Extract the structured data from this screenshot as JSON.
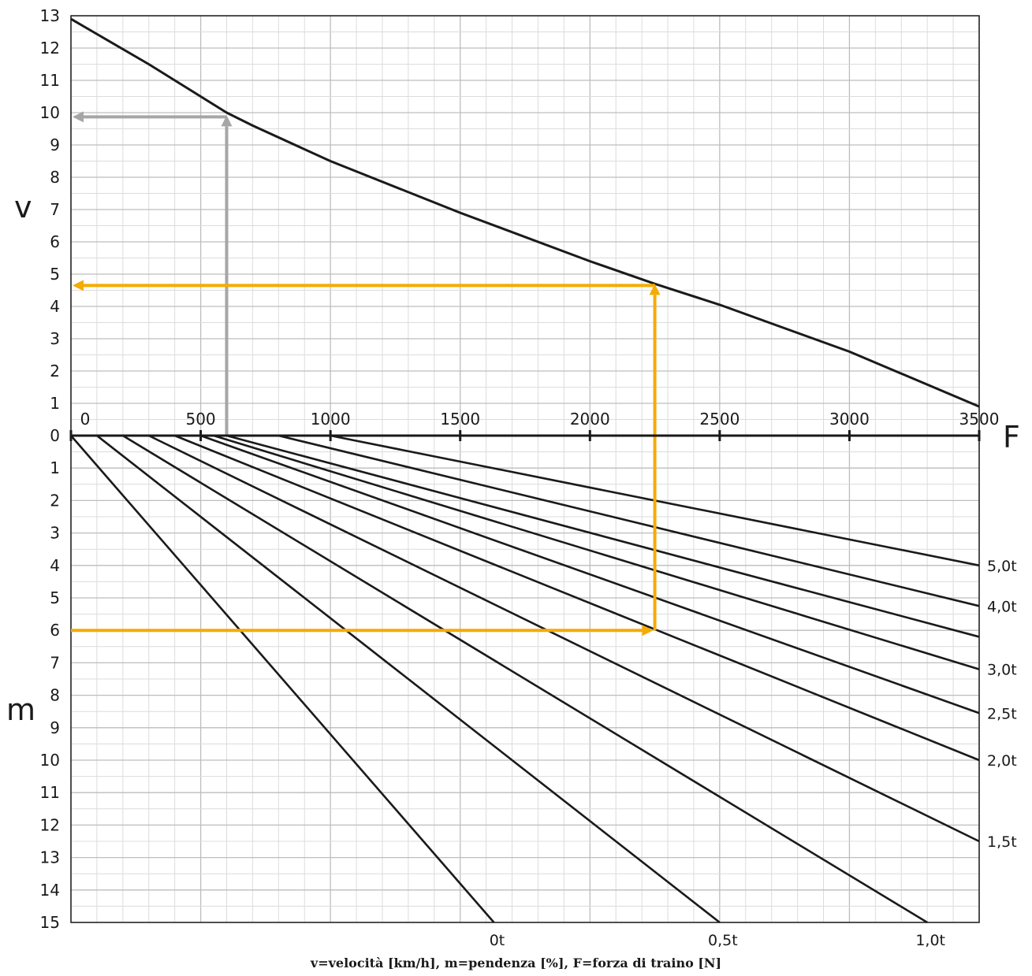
{
  "chart_data": {
    "type": "line",
    "caption": "v=velocità [km/h], m=pendenza [%], F=forza di traino [N]",
    "axis_letters": {
      "v": "v",
      "m": "m",
      "F": "F"
    },
    "v_axis": {
      "label": "v",
      "ticks": [
        0,
        1,
        2,
        3,
        4,
        5,
        6,
        7,
        8,
        9,
        10,
        11,
        12,
        13
      ],
      "range": [
        0,
        13
      ]
    },
    "m_axis": {
      "label": "m",
      "ticks": [
        1,
        2,
        3,
        4,
        5,
        6,
        7,
        8,
        9,
        10,
        11,
        12,
        13,
        14,
        15
      ],
      "range": [
        0,
        15
      ]
    },
    "F_axis": {
      "label": "F",
      "ticks": [
        0,
        500,
        1000,
        1500,
        2000,
        2500,
        3000,
        3500
      ],
      "range": [
        0,
        3500
      ]
    },
    "speed_curve": {
      "F": [
        0,
        300,
        600,
        700,
        1000,
        1500,
        2000,
        2250,
        2500,
        3000,
        3500
      ],
      "v": [
        12.9,
        11.5,
        10.0,
        9.6,
        8.5,
        6.9,
        5.4,
        4.7,
        4.05,
        2.6,
        0.9
      ]
    },
    "slope_lines": [
      {
        "label": "",
        "F_at_zero": 0,
        "F_at_end": 1630,
        "m_end": 15
      },
      {
        "label": "",
        "F_at_zero": 100,
        "F_at_end": 2500,
        "m_end": 15
      },
      {
        "label": "",
        "F_at_zero": 200,
        "F_at_end": 3300,
        "m_end": 15
      },
      {
        "label": "1,5t",
        "F_at_zero": 300,
        "F_at_end": 3500,
        "m_end": 12.5
      },
      {
        "label": "2,0t",
        "F_at_zero": 400,
        "F_at_end": 3500,
        "m_end": 10
      },
      {
        "label": "2,5t",
        "F_at_zero": 500,
        "F_at_end": 3500,
        "m_end": 8.55
      },
      {
        "label": "3,0t",
        "F_at_zero": 550,
        "F_at_end": 3500,
        "m_end": 7.2
      },
      {
        "label": "",
        "F_at_zero": 600,
        "F_at_end": 3500,
        "m_end": 6.2
      },
      {
        "label": "4,0t",
        "F_at_zero": 800,
        "F_at_end": 3500,
        "m_end": 5.25
      },
      {
        "label": "5,0t",
        "F_at_zero": 1000,
        "F_at_end": 3500,
        "m_end": 4.0
      }
    ],
    "bottom_labels": [
      {
        "label": "0t",
        "F": 1630
      },
      {
        "label": "0,5t",
        "F": 2500
      },
      {
        "label": "1,0t",
        "F": 3300
      }
    ],
    "example_grey": {
      "F": 600,
      "v": 9.87,
      "color": "#a6a6a6"
    },
    "example_orange": {
      "F": 2250,
      "v": 4.65,
      "m": 6,
      "color": "#f5ab00"
    }
  }
}
